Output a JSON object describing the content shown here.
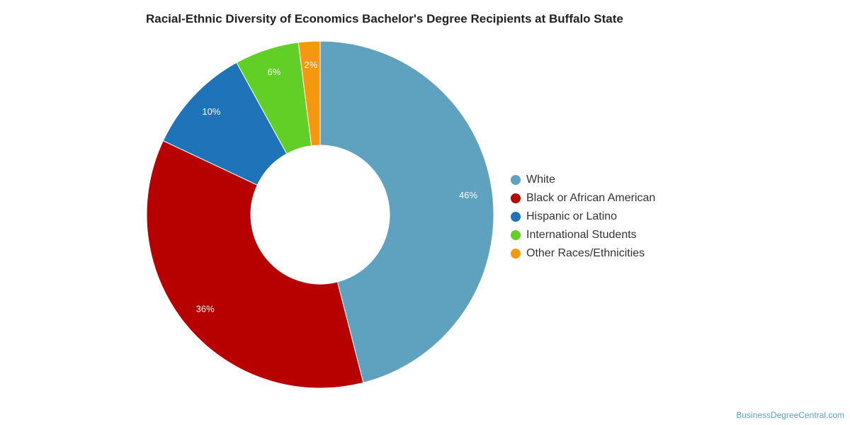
{
  "chart_data": {
    "type": "pie",
    "title": "Racial-Ethnic Diversity of Economics Bachelor's Degree Recipients at Buffalo State",
    "categories": [
      "White",
      "Black or African American",
      "Hispanic or Latino",
      "International Students",
      "Other Races/Ethnicities"
    ],
    "values": [
      46,
      36,
      10,
      6,
      2
    ],
    "data_labels": [
      "46%",
      "36%",
      "10%",
      "6%",
      "2%"
    ],
    "colors": [
      "#5ea2bf",
      "#b70000",
      "#1f73b8",
      "#62cf27",
      "#f6980f"
    ],
    "legend_position": "right",
    "donut": true
  },
  "credit": "BusinessDegreeCentral.com"
}
